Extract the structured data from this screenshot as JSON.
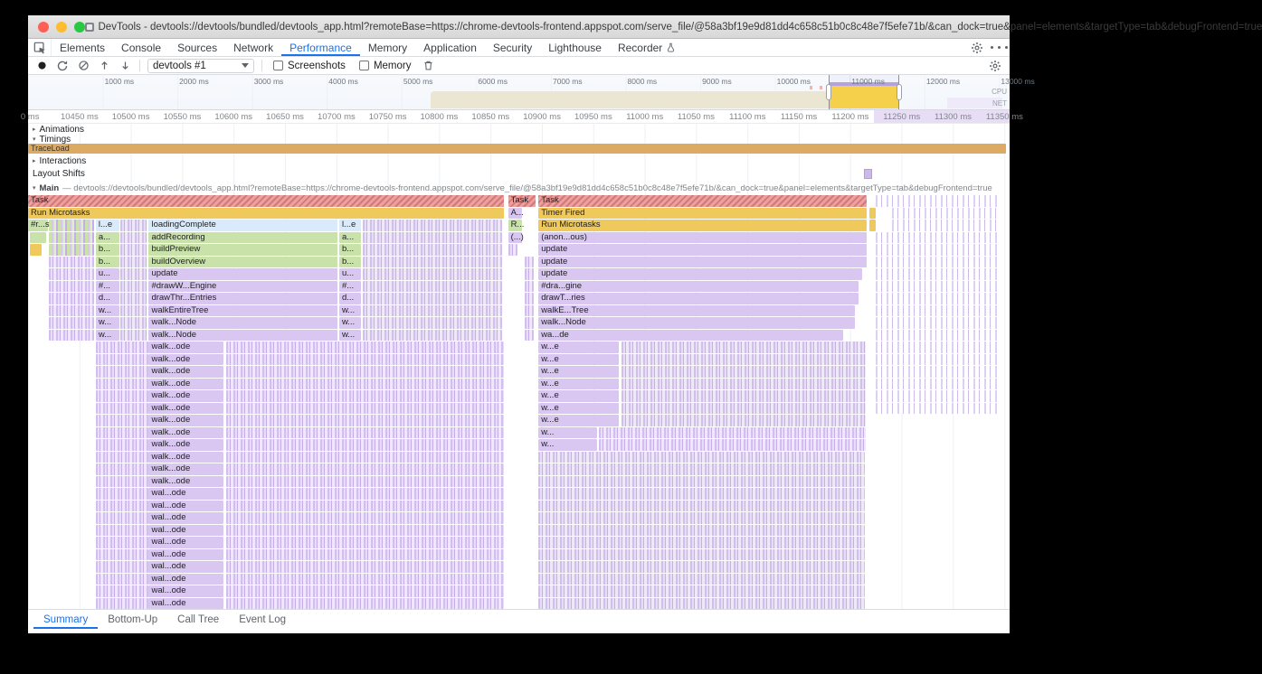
{
  "titlebar": {
    "title": "DevTools - devtools://devtools/bundled/devtools_app.html?remoteBase=https://chrome-devtools-frontend.appspot.com/serve_file/@58a3bf19e9d81dd4c658c51b0c8c48e7f5efe71b/&can_dock=true&panel=elements&targetType=tab&debugFrontend=true"
  },
  "panel_tabs": [
    "Elements",
    "Console",
    "Sources",
    "Network",
    "Performance",
    "Memory",
    "Application",
    "Security",
    "Lighthouse",
    "Recorder"
  ],
  "toolbar": {
    "capture_select": "devtools #1",
    "screenshots_label": "Screenshots",
    "memory_label": "Memory"
  },
  "overview": {
    "cpu_label": "CPU",
    "net_label": "NET",
    "time_labels": [
      {
        "t": "1000 ms",
        "x": 7.61
      },
      {
        "t": "2000 ms",
        "x": 15.22
      },
      {
        "t": "3000 ms",
        "x": 22.83
      },
      {
        "t": "4000 ms",
        "x": 30.44
      },
      {
        "t": "5000 ms",
        "x": 38.05
      },
      {
        "t": "6000 ms",
        "x": 45.66
      },
      {
        "t": "7000 ms",
        "x": 53.27
      },
      {
        "t": "8000 ms",
        "x": 60.88
      },
      {
        "t": "9000 ms",
        "x": 68.49
      },
      {
        "t": "10000 ms",
        "x": 76.1
      },
      {
        "t": "11000 ms",
        "x": 83.71
      },
      {
        "t": "12000 ms",
        "x": 91.32
      },
      {
        "t": "13000 ms",
        "x": 98.93
      }
    ]
  },
  "ruler": {
    "labels": [
      {
        "t": "0 ms",
        "x": 0.2
      },
      {
        "t": "10450 ms",
        "x": 5.24
      },
      {
        "t": "10500 ms",
        "x": 10.47
      },
      {
        "t": "10550 ms",
        "x": 15.71
      },
      {
        "t": "10600 ms",
        "x": 20.94
      },
      {
        "t": "10650 ms",
        "x": 26.18
      },
      {
        "t": "10700 ms",
        "x": 31.42
      },
      {
        "t": "10750 ms",
        "x": 36.65
      },
      {
        "t": "10800 ms",
        "x": 41.88
      },
      {
        "t": "10850 ms",
        "x": 47.12
      },
      {
        "t": "10900 ms",
        "x": 52.36
      },
      {
        "t": "10950 ms",
        "x": 57.59
      },
      {
        "t": "11000 ms",
        "x": 62.83
      },
      {
        "t": "11050 ms",
        "x": 68.06
      },
      {
        "t": "11100 ms",
        "x": 73.3
      },
      {
        "t": "11150 ms",
        "x": 78.53
      },
      {
        "t": "11200 ms",
        "x": 83.77
      },
      {
        "t": "11250 ms",
        "x": 89.01
      },
      {
        "t": "11300 ms",
        "x": 94.24
      },
      {
        "t": "11350 ms",
        "x": 99.48
      }
    ]
  },
  "tracks": {
    "animations": "Animations",
    "timings": "Timings",
    "traceload": "TraceLoad",
    "interactions": "Interactions",
    "layout_shifts": "Layout Shifts",
    "main_name": "Main",
    "main_url": "— devtools://devtools/bundled/devtools_app.html?remoteBase=https://chrome-devtools-frontend.appspot.com/serve_file/@58a3bf19e9d81dd4c658c51b0c8c48e7f5efe71b/&can_dock=true&panel=elements&targetType=tab&debugFrontend=true"
  },
  "bottom_tabs": [
    "Summary",
    "Bottom-Up",
    "Call Tree",
    "Event Log"
  ],
  "colors": {
    "accent": "#1a73e8",
    "task_red": "#e9a2a0",
    "scripting_yellow": "#f0c95c",
    "rendering_green": "#c9e2a9",
    "loading_blue": "#d9ebfb",
    "painting_purple": "#d9c7f2",
    "timings_bar": "#dcaa62"
  },
  "flame": {
    "rows": [
      {
        "segs": [
          [
            0,
            48.5,
            "task",
            "Task"
          ],
          [
            48.9,
            2.8,
            "task",
            "Task"
          ],
          [
            52,
            33.4,
            "task",
            "Task"
          ],
          [
            86.4,
            12.6,
            "texp2"
          ]
        ]
      },
      {
        "segs": [
          [
            0,
            48.5,
            "yellow",
            "Run Microtasks"
          ],
          [
            48.9,
            1.4,
            "purple",
            "A..."
          ],
          [
            52,
            33.4,
            "yellow",
            "Timer Fired"
          ],
          [
            85.7,
            0.7,
            "yellow"
          ],
          [
            88,
            11,
            "texp2"
          ]
        ]
      },
      {
        "segs": [
          [
            0,
            2,
            "green",
            "#r...s"
          ],
          [
            2.1,
            4.6,
            "texg"
          ],
          [
            6.9,
            2.4,
            "blue",
            "l...e"
          ],
          [
            9.4,
            2.7,
            "texp"
          ],
          [
            12.3,
            19.2,
            "blue",
            "loadingComplete"
          ],
          [
            31.7,
            2.2,
            "blue",
            "l...e"
          ],
          [
            34.1,
            14.2,
            "texp"
          ],
          [
            48.9,
            1.4,
            "green",
            "R..."
          ],
          [
            52,
            33.4,
            "yellow",
            "Run Microtasks"
          ],
          [
            85.7,
            0.7,
            "yellow"
          ],
          [
            88,
            11,
            "texp2"
          ]
        ]
      },
      {
        "segs": [
          [
            0.2,
            1.6,
            "green"
          ],
          [
            2.1,
            4.6,
            "texg"
          ],
          [
            6.9,
            2.4,
            "green",
            "a..."
          ],
          [
            9.4,
            2.7,
            "texp"
          ],
          [
            12.3,
            19.2,
            "green",
            "addRecording"
          ],
          [
            31.7,
            2.2,
            "green",
            "a..."
          ],
          [
            34.1,
            14.2,
            "texp"
          ],
          [
            48.9,
            1.4,
            "purple",
            "(...)"
          ],
          [
            52,
            33.4,
            "purple",
            "(anon...ous)"
          ],
          [
            86.4,
            12.6,
            "texp2"
          ]
        ]
      },
      {
        "segs": [
          [
            0.2,
            1.2,
            "yellow"
          ],
          [
            2.1,
            4.6,
            "texg"
          ],
          [
            6.9,
            2.4,
            "green",
            "b..."
          ],
          [
            9.4,
            2.7,
            "texp"
          ],
          [
            12.3,
            19.2,
            "green",
            "buildPreview"
          ],
          [
            31.7,
            2.2,
            "green",
            "b..."
          ],
          [
            34.1,
            14.2,
            "texp"
          ],
          [
            48.9,
            1,
            "texp"
          ],
          [
            52,
            33.4,
            "purple",
            "update"
          ],
          [
            86.4,
            12.6,
            "texp2"
          ]
        ]
      },
      {
        "segs": [
          [
            2.1,
            4.6,
            "texp"
          ],
          [
            6.9,
            2.4,
            "green",
            "b..."
          ],
          [
            9.4,
            2.7,
            "texp"
          ],
          [
            12.3,
            19.2,
            "green",
            "buildOverview"
          ],
          [
            31.7,
            2.2,
            "green",
            "b..."
          ],
          [
            34.1,
            14.2,
            "texp"
          ],
          [
            50.6,
            0.9,
            "texp"
          ],
          [
            52,
            33.4,
            "purple",
            "update"
          ],
          [
            86.4,
            12.6,
            "texp2"
          ]
        ]
      },
      {
        "segs": [
          [
            2.1,
            4.6,
            "texp"
          ],
          [
            6.9,
            2.4,
            "purple",
            "u..."
          ],
          [
            9.4,
            2.7,
            "texp"
          ],
          [
            12.3,
            19.2,
            "purple",
            "update"
          ],
          [
            31.7,
            2.2,
            "purple",
            "u..."
          ],
          [
            34.1,
            14.2,
            "texp"
          ],
          [
            50.6,
            0.9,
            "texp"
          ],
          [
            52,
            33,
            "purple",
            "update"
          ],
          [
            86.4,
            12.6,
            "texp2"
          ]
        ]
      },
      {
        "segs": [
          [
            2.1,
            4.6,
            "texp"
          ],
          [
            6.9,
            2.4,
            "purple",
            "#..."
          ],
          [
            9.4,
            2.7,
            "texp"
          ],
          [
            12.3,
            19.2,
            "purple",
            "#drawW...Engine"
          ],
          [
            31.7,
            2.2,
            "purple",
            "#..."
          ],
          [
            34.1,
            14.2,
            "texp"
          ],
          [
            50.6,
            0.9,
            "texp"
          ],
          [
            52,
            32.6,
            "purple",
            "#dra...gine"
          ],
          [
            86.4,
            12.6,
            "texp2"
          ]
        ]
      },
      {
        "segs": [
          [
            2.1,
            4.6,
            "texp"
          ],
          [
            6.9,
            2.4,
            "purple",
            "d..."
          ],
          [
            9.4,
            2.7,
            "texp"
          ],
          [
            12.3,
            19.2,
            "purple",
            "drawThr...Entries"
          ],
          [
            31.7,
            2.2,
            "purple",
            "d..."
          ],
          [
            34.1,
            14.2,
            "texp"
          ],
          [
            50.6,
            0.9,
            "texp"
          ],
          [
            52,
            32.6,
            "purple",
            "drawT...ries"
          ],
          [
            86.4,
            12.6,
            "texp2"
          ]
        ]
      },
      {
        "segs": [
          [
            2.1,
            4.6,
            "texp"
          ],
          [
            6.9,
            2.4,
            "purple",
            "w..."
          ],
          [
            9.4,
            2.7,
            "texp"
          ],
          [
            12.3,
            19.2,
            "purple",
            "walkEntireTree"
          ],
          [
            31.7,
            2.2,
            "purple",
            "w..."
          ],
          [
            34.1,
            14.2,
            "texp"
          ],
          [
            50.6,
            0.9,
            "texp"
          ],
          [
            52,
            32.2,
            "purple",
            "walkE...Tree"
          ],
          [
            86.4,
            12.6,
            "texp2"
          ]
        ]
      },
      {
        "segs": [
          [
            2.1,
            4.6,
            "texp"
          ],
          [
            6.9,
            2.4,
            "purple",
            "w..."
          ],
          [
            9.4,
            2.7,
            "texp"
          ],
          [
            12.3,
            19.2,
            "purple",
            "walk...Node"
          ],
          [
            31.7,
            2.2,
            "purple",
            "w..."
          ],
          [
            34.1,
            14.2,
            "texp"
          ],
          [
            50.6,
            0.9,
            "texp"
          ],
          [
            52,
            32.2,
            "purple",
            "walk...Node"
          ],
          [
            86.4,
            12.6,
            "texp2"
          ]
        ]
      },
      {
        "segs": [
          [
            2.1,
            4.6,
            "texp"
          ],
          [
            6.9,
            2.4,
            "purple",
            "w..."
          ],
          [
            9.4,
            2.7,
            "texp"
          ],
          [
            12.3,
            19.2,
            "purple",
            "walk...Node"
          ],
          [
            31.7,
            2.2,
            "purple",
            "w..."
          ],
          [
            34.1,
            14.2,
            "texp"
          ],
          [
            50.6,
            0.9,
            "texp"
          ],
          [
            52,
            31,
            "purple",
            "wa...de"
          ],
          [
            86.4,
            12.6,
            "texp2"
          ]
        ]
      },
      {
        "repeat": 6,
        "segs": [
          [
            6.9,
            5.4,
            "texp"
          ],
          [
            12.3,
            7.6,
            "purple",
            "walk...ode"
          ],
          [
            20.2,
            28.3,
            "texp"
          ],
          [
            52,
            8.2,
            "purple",
            "w...e"
          ],
          [
            60.5,
            24.8,
            "texp"
          ],
          [
            86.4,
            12.6,
            "texp2"
          ]
        ]
      },
      {
        "segs": [
          [
            6.9,
            5.4,
            "texp"
          ],
          [
            12.3,
            7.6,
            "purple",
            "walk...ode"
          ],
          [
            20.2,
            28.3,
            "texp"
          ],
          [
            52,
            8.2,
            "purple",
            "w...e"
          ],
          [
            60.5,
            24.8,
            "texp"
          ]
        ]
      },
      {
        "repeat": 2,
        "segs": [
          [
            6.9,
            5.4,
            "texp"
          ],
          [
            12.3,
            7.6,
            "purple",
            "walk...ode"
          ],
          [
            20.2,
            28.3,
            "texp"
          ],
          [
            52,
            6,
            "purple",
            "w..."
          ],
          [
            58.2,
            27.1,
            "texp"
          ]
        ]
      },
      {
        "repeat": 3,
        "segs": [
          [
            6.9,
            5.4,
            "texp"
          ],
          [
            12.3,
            7.6,
            "purple",
            "walk...ode"
          ],
          [
            20.2,
            28.3,
            "texp"
          ],
          [
            52,
            33.3,
            "texp"
          ]
        ]
      },
      {
        "repeat": 10,
        "segs": [
          [
            6.9,
            5.4,
            "texp"
          ],
          [
            12.3,
            7.6,
            "purple",
            "wal...ode"
          ],
          [
            20.2,
            28.3,
            "texp"
          ],
          [
            52,
            33.3,
            "texp"
          ]
        ]
      }
    ]
  }
}
